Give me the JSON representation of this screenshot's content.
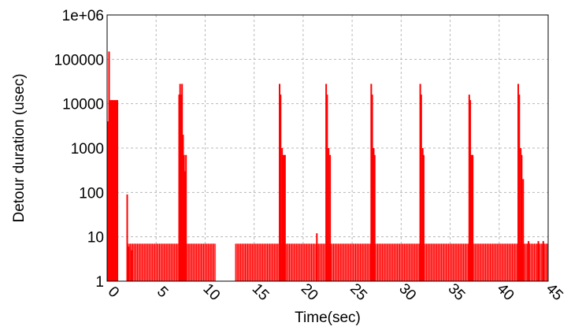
{
  "chart_data": {
    "type": "bar",
    "title": "",
    "xlabel": "Time(sec)",
    "ylabel": "Detour duration (usec)",
    "xlim": [
      0,
      45
    ],
    "ylim": [
      1,
      1000000
    ],
    "yscale": "log",
    "grid": true,
    "x_tick_labels": [
      "0",
      "5",
      "10",
      "15",
      "20",
      "25",
      "30",
      "35",
      "40",
      "45"
    ],
    "y_tick_labels": [
      "1",
      "10",
      "100",
      "1000",
      "10000",
      "100000",
      "1e+06"
    ],
    "color": "#ff0000",
    "baseline_value": 7,
    "baseline_ranges": [
      [
        2.1,
        11.1
      ],
      [
        13.1,
        45
      ]
    ],
    "spikes": [
      {
        "x": 0.2,
        "y": 150000
      },
      {
        "x": 0.1,
        "y": 4000
      },
      {
        "x": 0.35,
        "y": 12000
      },
      {
        "x": 0.5,
        "y": 12000
      },
      {
        "x": 0.65,
        "y": 12000
      },
      {
        "x": 0.8,
        "y": 12000
      },
      {
        "x": 0.95,
        "y": 12000
      },
      {
        "x": 1.05,
        "y": 12000
      },
      {
        "x": 2.05,
        "y": 90
      },
      {
        "x": 2.2,
        "y": 6
      },
      {
        "x": 2.5,
        "y": 5
      },
      {
        "x": 7.35,
        "y": 16000
      },
      {
        "x": 7.45,
        "y": 28000
      },
      {
        "x": 7.55,
        "y": 16000
      },
      {
        "x": 7.65,
        "y": 28000
      },
      {
        "x": 7.75,
        "y": 2000
      },
      {
        "x": 7.85,
        "y": 700
      },
      {
        "x": 7.95,
        "y": 300
      },
      {
        "x": 8.05,
        "y": 700
      },
      {
        "x": 17.6,
        "y": 28000
      },
      {
        "x": 17.7,
        "y": 16000
      },
      {
        "x": 17.85,
        "y": 1000
      },
      {
        "x": 18.0,
        "y": 700
      },
      {
        "x": 18.15,
        "y": 700
      },
      {
        "x": 22.35,
        "y": 28000
      },
      {
        "x": 22.45,
        "y": 16000
      },
      {
        "x": 22.6,
        "y": 1000
      },
      {
        "x": 22.75,
        "y": 700
      },
      {
        "x": 21.4,
        "y": 12
      },
      {
        "x": 26.95,
        "y": 28000
      },
      {
        "x": 27.05,
        "y": 16000
      },
      {
        "x": 27.2,
        "y": 1000
      },
      {
        "x": 27.3,
        "y": 700
      },
      {
        "x": 31.95,
        "y": 28000
      },
      {
        "x": 32.05,
        "y": 16000
      },
      {
        "x": 32.2,
        "y": 1000
      },
      {
        "x": 32.3,
        "y": 700
      },
      {
        "x": 36.95,
        "y": 16000
      },
      {
        "x": 37.05,
        "y": 12000
      },
      {
        "x": 37.2,
        "y": 700
      },
      {
        "x": 37.3,
        "y": 700
      },
      {
        "x": 41.95,
        "y": 28000
      },
      {
        "x": 42.05,
        "y": 16000
      },
      {
        "x": 42.2,
        "y": 1000
      },
      {
        "x": 42.3,
        "y": 700
      },
      {
        "x": 42.45,
        "y": 200
      },
      {
        "x": 43.0,
        "y": 8
      },
      {
        "x": 44.0,
        "y": 8
      },
      {
        "x": 44.5,
        "y": 8
      }
    ]
  }
}
